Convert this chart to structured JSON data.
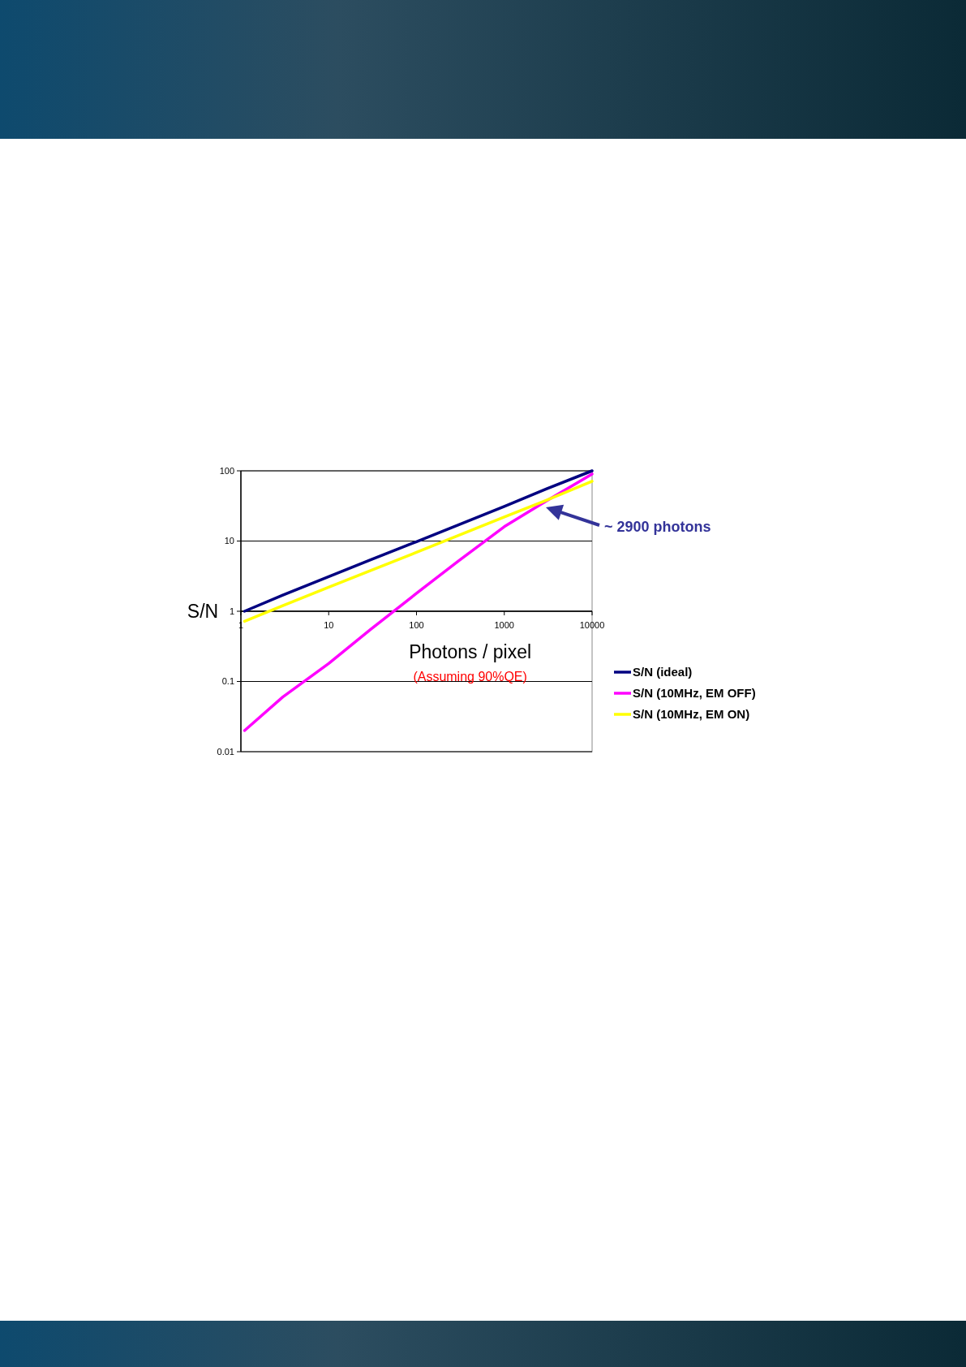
{
  "chart_data": {
    "type": "line",
    "ylabel": "S/N",
    "xlabel": "Photons / pixel",
    "log": "xy",
    "xlim": [
      1,
      10000
    ],
    "ylim": [
      0.01,
      100
    ],
    "xticks": [
      1,
      10,
      100,
      1000,
      10000
    ],
    "yticks": [
      0.01,
      0.1,
      1,
      10,
      100
    ],
    "grid": "y",
    "legend": "right",
    "line_style": "solid",
    "marker": "none",
    "x": [
      1.1,
      3,
      10,
      30,
      100,
      300,
      1000,
      3000,
      10000
    ],
    "series": [
      {
        "name": "S/N (ideal)",
        "color": "#000080",
        "values": [
          1,
          1.7,
          3.1,
          5.4,
          9.8,
          17,
          31,
          55,
          100
        ]
      },
      {
        "name": "S/N (10MHz, EM OFF)",
        "color": "#ff00ff",
        "values": [
          0.02,
          0.06,
          0.18,
          0.55,
          1.8,
          5.2,
          16,
          37,
          90
        ]
      },
      {
        "name": "S/N (10MHz, EM ON)",
        "color": "#ffff00",
        "values": [
          0.72,
          1.2,
          2.2,
          3.8,
          6.9,
          12,
          22,
          38,
          71
        ]
      }
    ],
    "annotations": [
      "~ 2900 photons",
      "(Assuming 90%QE)"
    ]
  }
}
